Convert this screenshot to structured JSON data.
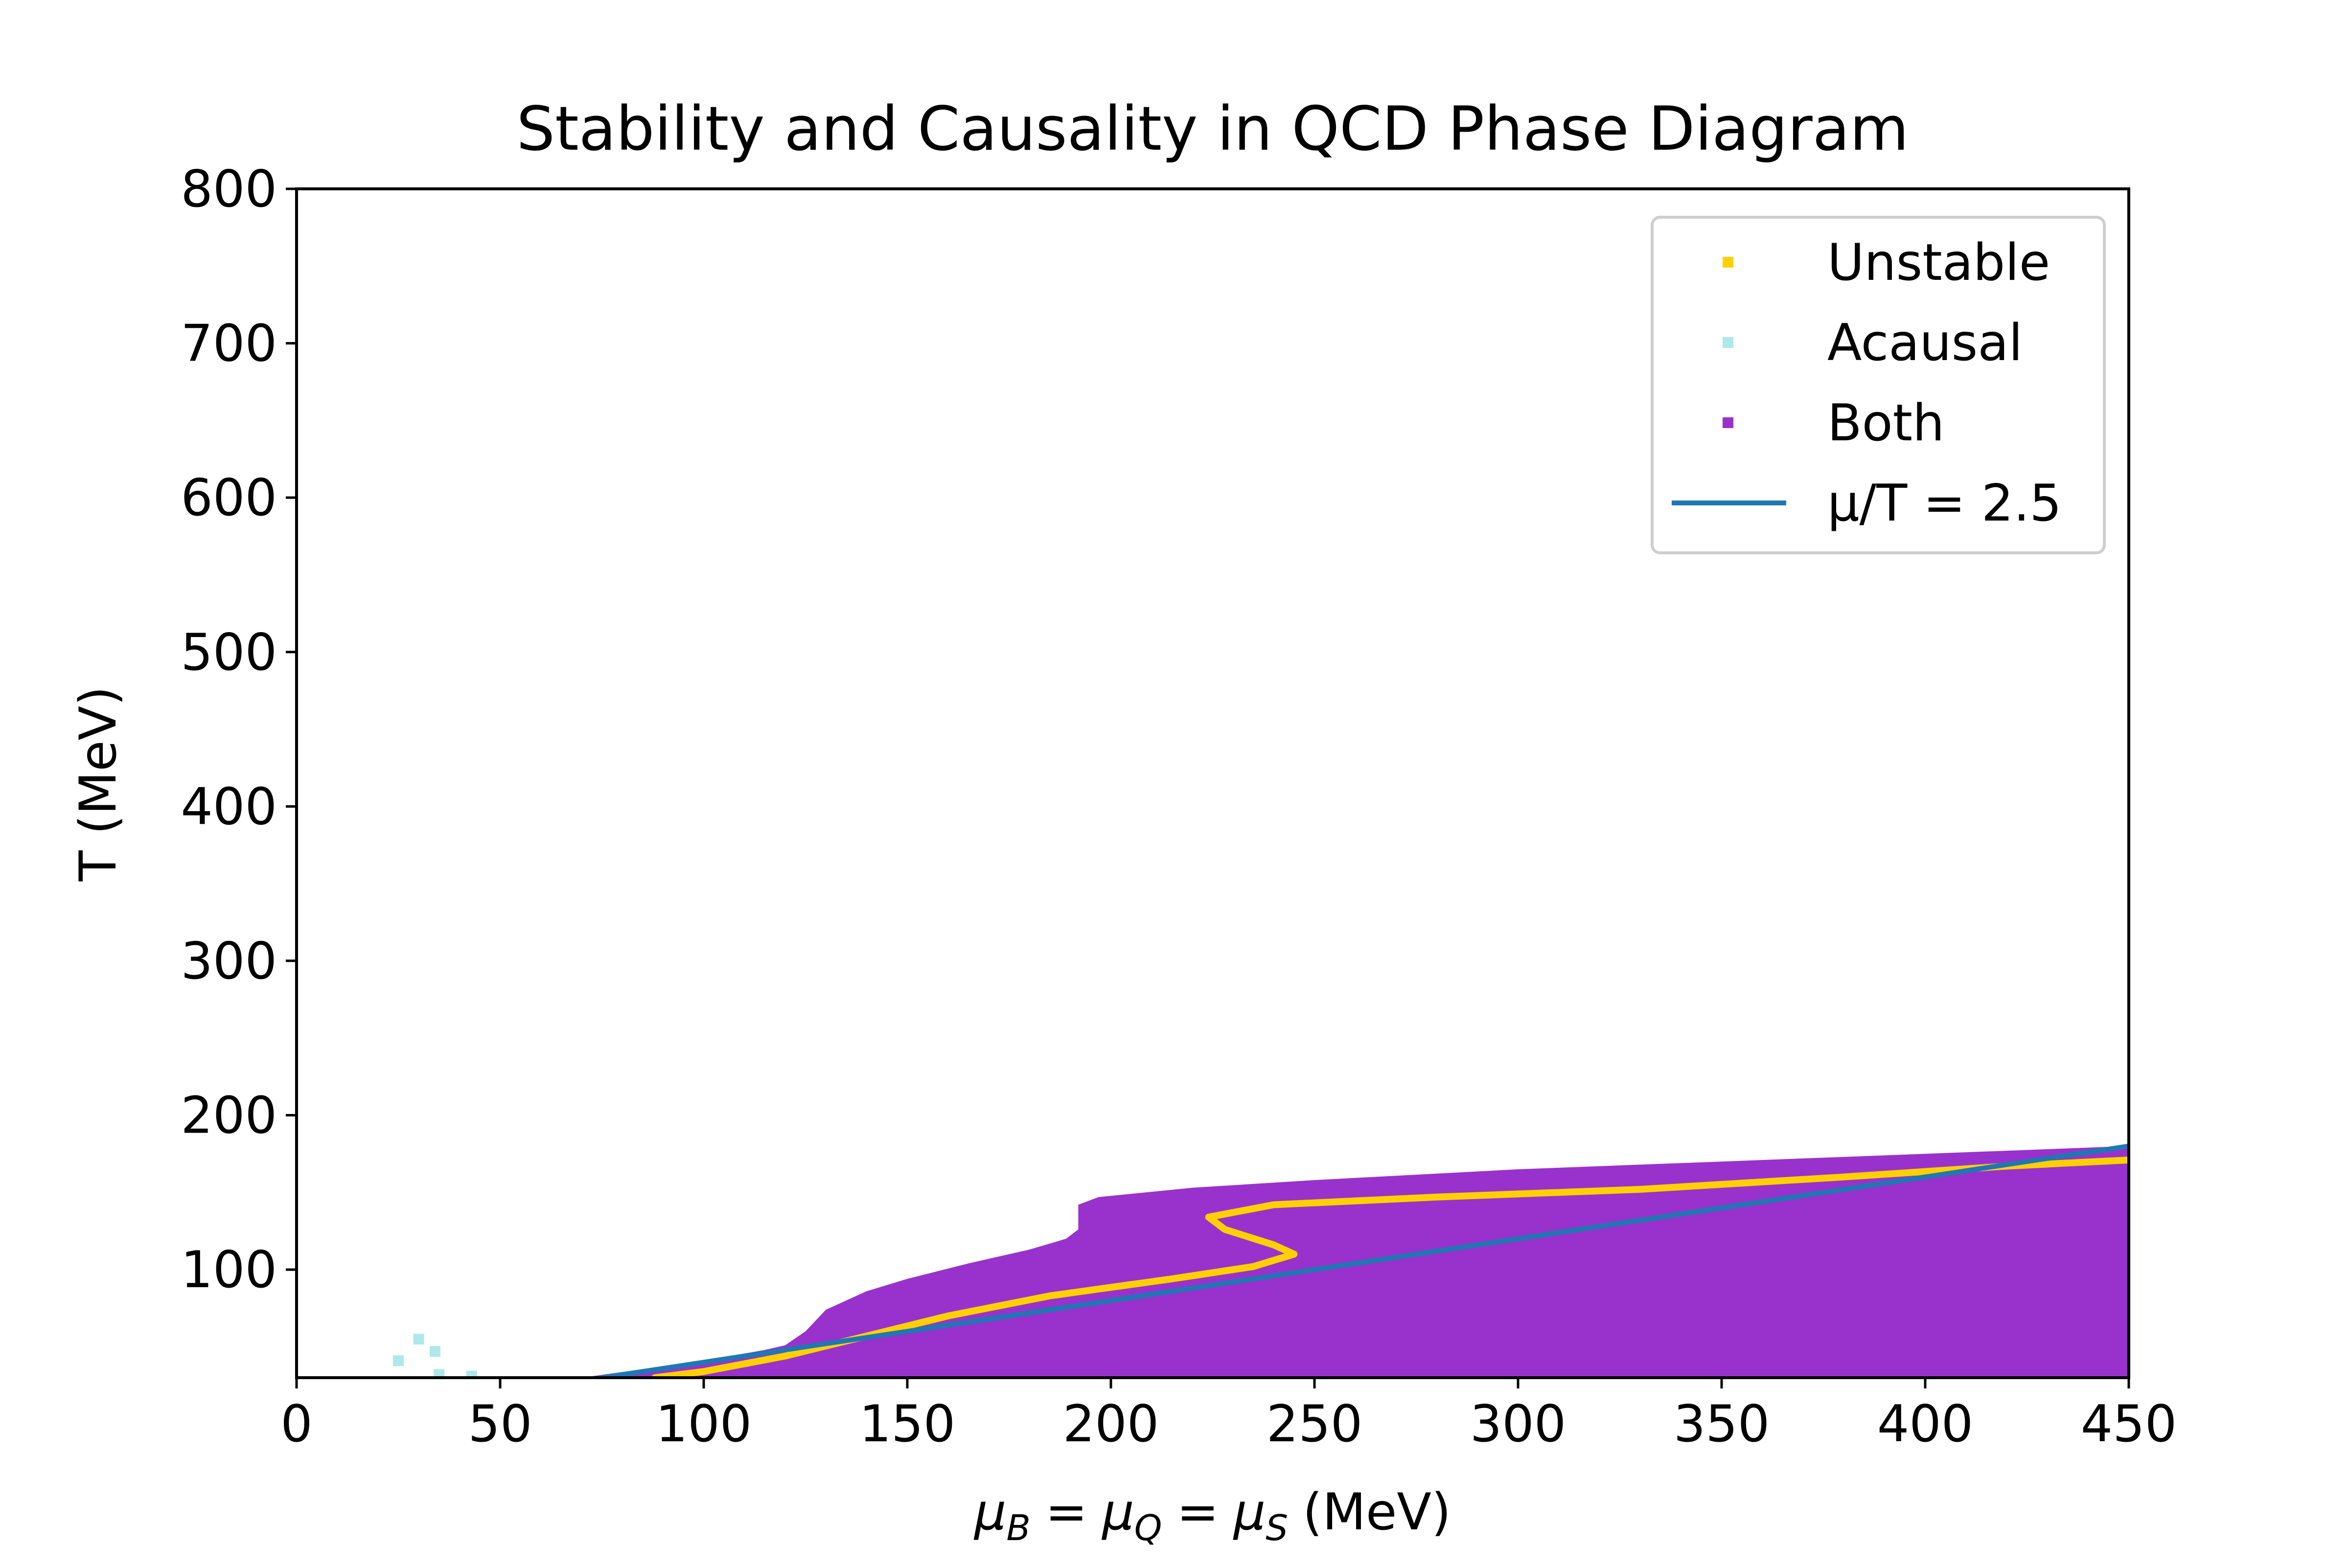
{
  "chart_data": {
    "type": "scatter",
    "title": "Stability and Causality in QCD Phase Diagram",
    "xlabel": {
      "mu": "μ",
      "sub_b": "B",
      "sub_q": "Q",
      "sub_s": "S",
      "eq": "=",
      "unit": "(MeV)"
    },
    "ylabel": "T (MeV)",
    "xlim": [
      0,
      450
    ],
    "ylim": [
      30,
      800
    ],
    "x_ticks": [
      0,
      50,
      100,
      150,
      200,
      250,
      300,
      350,
      400,
      450
    ],
    "y_ticks": [
      100,
      200,
      300,
      400,
      500,
      600,
      700,
      800
    ],
    "x_tick_labels": [
      "0",
      "50",
      "100",
      "150",
      "200",
      "250",
      "300",
      "350",
      "400",
      "450"
    ],
    "y_tick_labels": [
      "100",
      "200",
      "300",
      "400",
      "500",
      "600",
      "700",
      "800"
    ],
    "grid": false,
    "legend_position": "top-right",
    "colors": {
      "unstable": "#ffd000",
      "acausal": "#aee8ea",
      "both": "#9932cc",
      "line": "#1f77b4"
    },
    "legend": [
      {
        "label": "Unstable",
        "kind": "marker",
        "color": "#ffd000"
      },
      {
        "label": "Acausal",
        "kind": "marker",
        "color": "#aee8ea"
      },
      {
        "label": "Both",
        "kind": "marker",
        "color": "#9932cc"
      },
      {
        "label": "μ/T = 2.5",
        "kind": "line",
        "color": "#1f77b4"
      }
    ],
    "series": [
      {
        "name": "Both",
        "kind": "region",
        "boundary": [
          {
            "x": 70,
            "y": 30
          },
          {
            "x": 100,
            "y": 41
          },
          {
            "x": 115,
            "y": 48
          },
          {
            "x": 120,
            "y": 51
          },
          {
            "x": 125,
            "y": 60
          },
          {
            "x": 130,
            "y": 74
          },
          {
            "x": 140,
            "y": 86
          },
          {
            "x": 150,
            "y": 94
          },
          {
            "x": 165,
            "y": 104
          },
          {
            "x": 180,
            "y": 113
          },
          {
            "x": 189,
            "y": 120
          },
          {
            "x": 192,
            "y": 126
          },
          {
            "x": 192,
            "y": 142
          },
          {
            "x": 197,
            "y": 147
          },
          {
            "x": 220,
            "y": 153
          },
          {
            "x": 250,
            "y": 158
          },
          {
            "x": 300,
            "y": 165
          },
          {
            "x": 350,
            "y": 170
          },
          {
            "x": 400,
            "y": 175
          },
          {
            "x": 450,
            "y": 180
          },
          {
            "x": 450,
            "y": 30
          }
        ]
      },
      {
        "name": "Unstable",
        "kind": "band",
        "points": [
          {
            "x": 88,
            "y": 30
          },
          {
            "x": 100,
            "y": 34
          },
          {
            "x": 120,
            "y": 44
          },
          {
            "x": 140,
            "y": 57
          },
          {
            "x": 160,
            "y": 70
          },
          {
            "x": 185,
            "y": 83
          },
          {
            "x": 215,
            "y": 94
          },
          {
            "x": 235,
            "y": 102
          },
          {
            "x": 245,
            "y": 110
          },
          {
            "x": 240,
            "y": 116
          },
          {
            "x": 228,
            "y": 126
          },
          {
            "x": 224,
            "y": 134
          },
          {
            "x": 240,
            "y": 142
          },
          {
            "x": 280,
            "y": 147
          },
          {
            "x": 330,
            "y": 152
          },
          {
            "x": 380,
            "y": 160
          },
          {
            "x": 420,
            "y": 167
          },
          {
            "x": 450,
            "y": 171
          }
        ]
      },
      {
        "name": "Acausal",
        "kind": "markers",
        "points": [
          {
            "x": 25,
            "y": 41
          },
          {
            "x": 30,
            "y": 55
          },
          {
            "x": 34,
            "y": 47
          },
          {
            "x": 35,
            "y": 32
          },
          {
            "x": 43,
            "y": 31
          }
        ]
      },
      {
        "name": "μ/T = 2.5",
        "kind": "line",
        "points": [
          {
            "x": 70,
            "y": 28
          },
          {
            "x": 450,
            "y": 180
          }
        ]
      }
    ]
  }
}
